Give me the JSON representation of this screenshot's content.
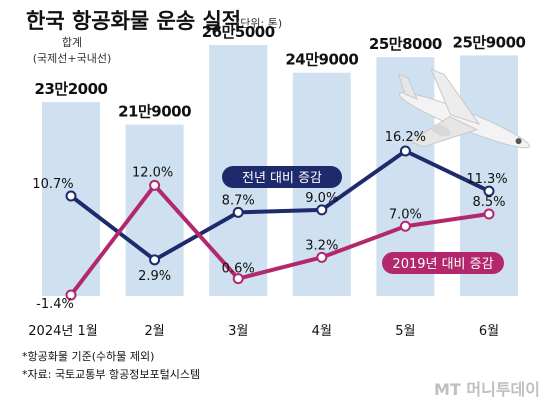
{
  "title": "한국 항공화물 운송 실적",
  "unit": "(단위: 톤)",
  "total_note_line1": "합계",
  "total_note_line2": "(국제선+국내선)",
  "footnotes": [
    "*항공화물 기준(수하물 제외)",
    "*자료: 국토교통부 항공정보포털시스템"
  ],
  "brand": "MT 머니투데이",
  "colors": {
    "bar": "#cfe0f0",
    "yoy_line": "#1d2a6b",
    "vs2019_line": "#b3286d"
  },
  "chart_data": {
    "type": "bar",
    "categories": [
      "2024년 1월",
      "2월",
      "3월",
      "4월",
      "5월",
      "6월"
    ],
    "totals": [
      232000,
      219000,
      265000,
      249000,
      258000,
      259000
    ],
    "total_labels": [
      "23만2000",
      "21만9000",
      "26만5000",
      "24만9000",
      "25만8000",
      "25만9000"
    ],
    "series": [
      {
        "name": "전년 대비 증감",
        "type": "line",
        "values": [
          10.7,
          2.9,
          8.7,
          9.0,
          16.2,
          11.3
        ],
        "labels": [
          "10.7%",
          "2.9%",
          "8.7%",
          "9.0%",
          "16.2%",
          "11.3%"
        ]
      },
      {
        "name": "2019년 대비 증감",
        "type": "line",
        "values": [
          -1.4,
          12.0,
          0.6,
          3.2,
          7.0,
          8.5
        ],
        "labels": [
          "-1.4%",
          "12.0%",
          "0.6%",
          "3.2%",
          "7.0%",
          "8.5%"
        ]
      }
    ]
  }
}
